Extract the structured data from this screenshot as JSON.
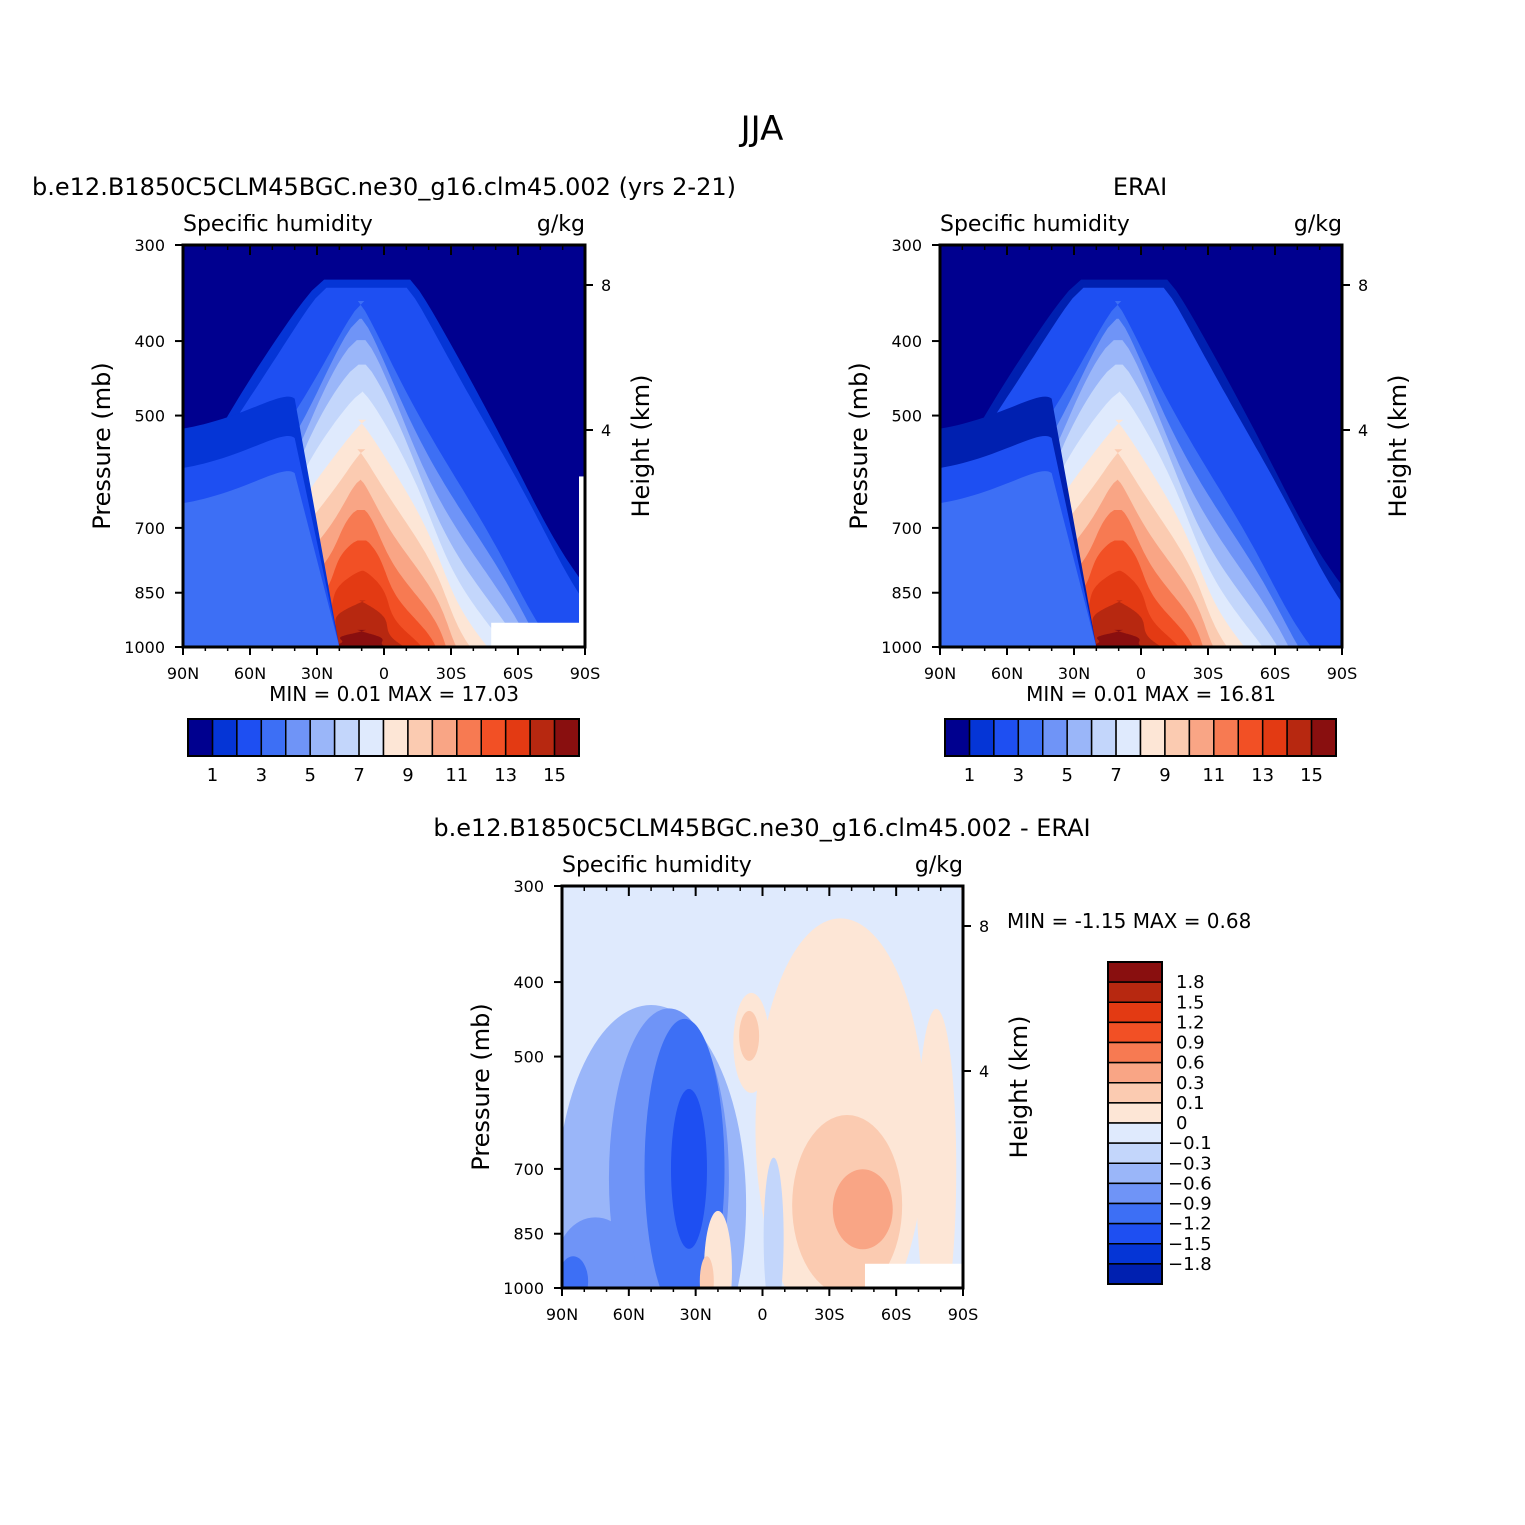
{
  "title": "JJA",
  "palettes": {
    "full": [
      "#00008f",
      "#0020b0",
      "#0535d6",
      "#1e4ff2",
      "#3d6ff5",
      "#6f94f7",
      "#9ab6f9",
      "#c3d6fb",
      "#dfeafd",
      "#fde6d6",
      "#fbcbb1",
      "#f9a585",
      "#f77a52",
      "#f25025",
      "#e33a13",
      "#b72810",
      "#890f0f"
    ],
    "model_bands": [
      0,
      2,
      3,
      4,
      5,
      6,
      7,
      8,
      9,
      10,
      11,
      12,
      13,
      14,
      15,
      16
    ],
    "obs_bands": [
      0,
      1,
      3,
      4,
      5,
      6,
      7,
      8,
      9,
      10,
      11,
      12,
      13,
      14,
      15,
      16
    ],
    "diff": [
      "#00008f",
      "#0020b0",
      "#0535d6",
      "#1e4ff2",
      "#3d6ff5",
      "#6f94f7",
      "#9ab6f9",
      "#c3d6fb",
      "#dfeafd",
      "#fde6d6",
      "#fbcbb1",
      "#f9a585",
      "#f77a52",
      "#f25025",
      "#e33a13",
      "#b72810",
      "#890f0f"
    ]
  },
  "panels": {
    "model": {
      "header": "b.e12.B1850C5CLM45BGC.ne30_g16.clm45.002 (yrs 2-21)",
      "left_label": "Specific humidity",
      "right_label": "g/kg",
      "y_axis_label": "Pressure (mb)",
      "y2_axis_label": "Height (km)",
      "minmax": "MIN =    0.01   MAX =   17.03"
    },
    "obs": {
      "header": "ERAI",
      "left_label": "Specific humidity",
      "right_label": "g/kg",
      "y_axis_label": "Pressure (mb)",
      "y2_axis_label": "Height (km)",
      "minmax": "MIN =    0.01   MAX =   16.81"
    },
    "diff": {
      "header": "b.e12.B1850C5CLM45BGC.ne30_g16.clm45.002 - ERAI",
      "left_label": "Specific humidity",
      "right_label": "g/kg",
      "y_axis_label": "Pressure (mb)",
      "y2_axis_label": "Height (km)",
      "minmax": "MIN =   -1.15   MAX =    0.68"
    }
  },
  "chart_data": [
    {
      "type": "heatmap",
      "panel": "model",
      "title": "b.e12.B1850C5CLM45BGC.ne30_g16.clm45.002 (yrs 2-21)",
      "variable": "Specific humidity",
      "units": "g/kg",
      "xlabel": "",
      "ylabel": "Pressure (mb)",
      "y2label": "Height (km)",
      "x_ticks": [
        "90N",
        "60N",
        "30N",
        "0",
        "30S",
        "60S",
        "90S"
      ],
      "x_range_lat": [
        90,
        -90
      ],
      "y_ticks": [
        300,
        400,
        500,
        700,
        850,
        1000
      ],
      "y_range": [
        300,
        1000
      ],
      "y2_ticks": [
        8,
        4
      ],
      "colorbar_labels": [
        "1",
        "3",
        "5",
        "7",
        "9",
        "11",
        "13",
        "15"
      ],
      "levels": [
        1,
        2,
        3,
        4,
        5,
        6,
        7,
        8,
        9,
        10,
        11,
        12,
        13,
        14,
        15
      ],
      "peak_lat": 10,
      "min": 0.01,
      "max": 17.03
    },
    {
      "type": "heatmap",
      "panel": "obs",
      "title": "ERAI",
      "variable": "Specific humidity",
      "units": "g/kg",
      "xlabel": "",
      "ylabel": "Pressure (mb)",
      "y2label": "Height (km)",
      "x_ticks": [
        "90N",
        "60N",
        "30N",
        "0",
        "30S",
        "60S",
        "90S"
      ],
      "x_range_lat": [
        90,
        -90
      ],
      "y_ticks": [
        300,
        400,
        500,
        700,
        850,
        1000
      ],
      "y_range": [
        300,
        1000
      ],
      "y2_ticks": [
        8,
        4
      ],
      "colorbar_labels": [
        "1",
        "3",
        "5",
        "7",
        "9",
        "11",
        "13",
        "15"
      ],
      "levels": [
        1,
        2,
        3,
        4,
        5,
        6,
        7,
        8,
        9,
        10,
        11,
        12,
        13,
        14,
        15
      ],
      "peak_lat": 10,
      "min": 0.01,
      "max": 16.81
    },
    {
      "type": "heatmap",
      "panel": "diff",
      "title": "b.e12.B1850C5CLM45BGC.ne30_g16.clm45.002 - ERAI",
      "variable": "Specific humidity",
      "units": "g/kg",
      "xlabel": "",
      "ylabel": "Pressure (mb)",
      "y2label": "Height (km)",
      "x_ticks": [
        "90N",
        "60N",
        "30N",
        "0",
        "30S",
        "60S",
        "90S"
      ],
      "x_range_lat": [
        90,
        -90
      ],
      "y_ticks": [
        300,
        400,
        500,
        700,
        850,
        1000
      ],
      "y_range": [
        300,
        1000
      ],
      "y2_ticks": [
        8,
        4
      ],
      "levels": [
        -1.8,
        -1.5,
        -1.2,
        -0.9,
        -0.6,
        -0.3,
        -0.1,
        0,
        0.1,
        0.3,
        0.6,
        0.9,
        1.2,
        1.5,
        1.8
      ],
      "colorbar_labels": [
        "1.8",
        "1.5",
        "1.2",
        "0.9",
        "0.6",
        "0.3",
        "0.1",
        "0",
        "-0.1",
        "-0.3",
        "-0.6",
        "-0.9",
        "-1.2",
        "-1.5",
        "-1.8"
      ],
      "min": -1.15,
      "max": 0.68
    }
  ]
}
